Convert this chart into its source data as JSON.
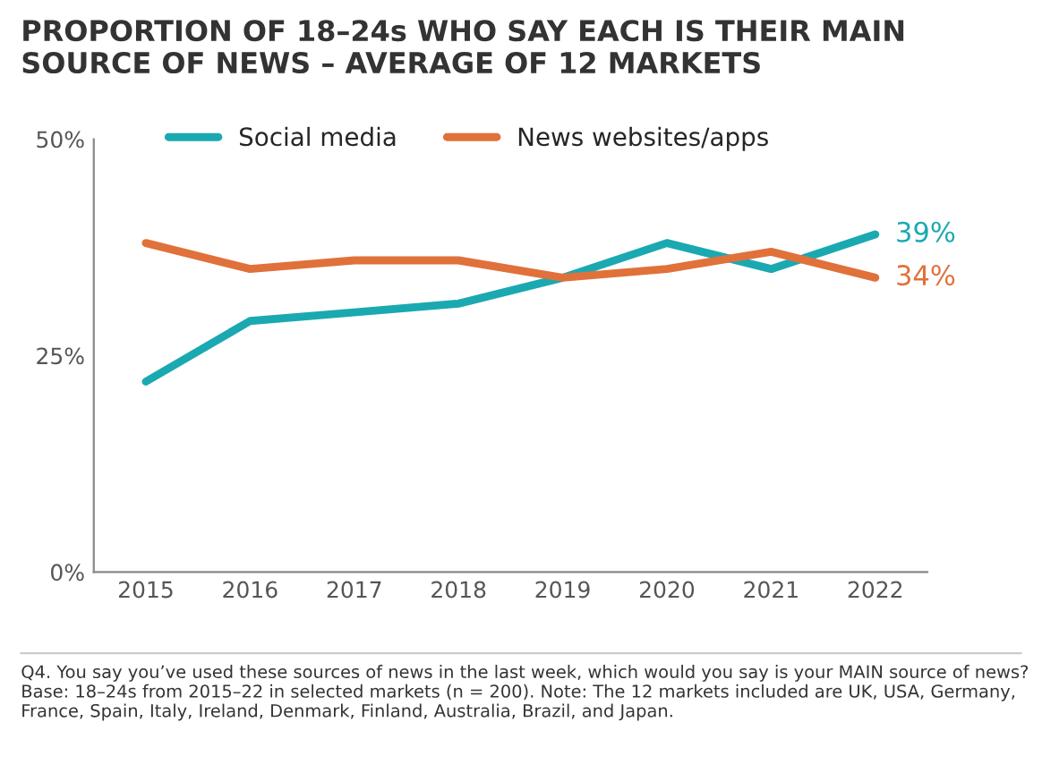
{
  "chart_data": {
    "type": "line",
    "title": "PROPORTION OF 18–24s WHO SAY EACH IS THEIR MAIN SOURCE OF NEWS – AVERAGE OF 12 MARKETS",
    "categories": [
      "2015",
      "2016",
      "2017",
      "2018",
      "2019",
      "2020",
      "2021",
      "2022"
    ],
    "series": [
      {
        "name": "Social media",
        "color": "#1ba9b1",
        "values": [
          22,
          29,
          30,
          31,
          34,
          38,
          35,
          39
        ],
        "value_labels": [
          null,
          null,
          null,
          null,
          null,
          null,
          null,
          "39%"
        ]
      },
      {
        "name": "News websites/apps",
        "color": "#e0713a",
        "values": [
          38,
          35,
          36,
          36,
          34,
          35,
          37,
          34
        ],
        "value_labels": [
          null,
          null,
          null,
          null,
          null,
          null,
          null,
          "34%"
        ]
      }
    ],
    "ylim": [
      0,
      50
    ],
    "yticks": [
      {
        "value": 0,
        "label": "0%"
      },
      {
        "value": 25,
        "label": "25%"
      },
      {
        "value": 50,
        "label": "50%"
      }
    ],
    "grid": false,
    "legend": "top",
    "marker": "none",
    "line_style": "solid",
    "annotations": [
      "Q4. You say you’ve used these sources of news in the last week, which would you say is your MAIN source of news? Base: 18–24s from 2015–22 in selected markets (n = 200). Note: The 12 markets included are UK, USA, Germany, France, Spain, Italy, Ireland, Denmark, Finland, Australia, Brazil, and Japan."
    ]
  }
}
